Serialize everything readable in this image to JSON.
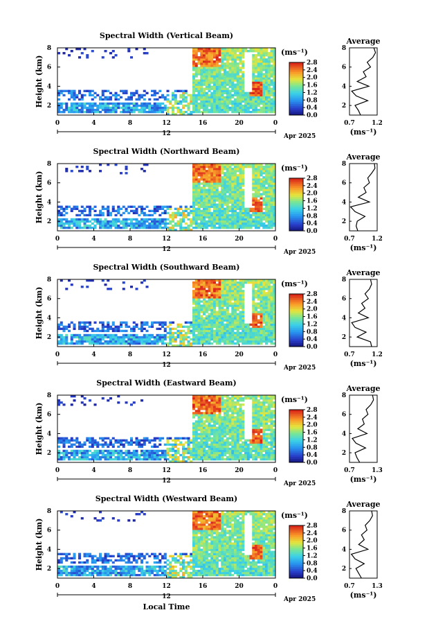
{
  "figure": {
    "date_label": "Apr 2025",
    "x_label": "Local Time",
    "y_label": "Height (km)",
    "colorbar_unit": "(ms⁻¹)",
    "avg_unit": "(ms⁻¹)",
    "avg_title": "Average",
    "day_label": "12"
  },
  "chart_data": [
    {
      "type": "heatmap",
      "title": "Spectral Width (Vertical Beam)",
      "xlabel": "",
      "ylabel": "Height (km)",
      "x_ticks": [
        "0",
        "4",
        "8",
        "12",
        "16",
        "20",
        "0"
      ],
      "y_ticks": [
        "2",
        "4",
        "6",
        "8"
      ],
      "xlim": [
        0,
        24
      ],
      "ylim": [
        1,
        8
      ],
      "colorbar": {
        "unit": "(ms⁻¹)",
        "ticks": [
          "0.0",
          "0.4",
          "0.8",
          "1.2",
          "1.6",
          "2.0",
          "2.4",
          "2.8"
        ],
        "range": [
          0,
          2.8
        ]
      },
      "average_profile": {
        "title": "Average",
        "xlabel": "(ms⁻¹)",
        "xlim": [
          0.7,
          1.2
        ],
        "x_ticks": [
          "0.7",
          "1.2"
        ],
        "ylim": [
          1,
          8
        ],
        "y_ticks": [
          "2",
          "4",
          "6",
          "8"
        ],
        "height_km": [
          1.0,
          1.5,
          2.0,
          2.5,
          3.0,
          3.5,
          4.0,
          4.5,
          5.0,
          5.5,
          6.0,
          6.5,
          7.0,
          7.5,
          8.0
        ],
        "value_ms": [
          0.9,
          0.86,
          0.8,
          1.03,
          0.82,
          0.74,
          1.05,
          0.84,
          1.0,
          0.95,
          1.08,
          1.02,
          1.12,
          1.17,
          1.14
        ]
      }
    },
    {
      "type": "heatmap",
      "title": "Spectral Width (Northward Beam)",
      "xlabel": "",
      "ylabel": "Height (km)",
      "x_ticks": [
        "0",
        "4",
        "8",
        "12",
        "16",
        "20",
        "0"
      ],
      "y_ticks": [
        "2",
        "4",
        "6",
        "8"
      ],
      "xlim": [
        0,
        24
      ],
      "ylim": [
        1,
        8
      ],
      "colorbar": {
        "unit": "(ms⁻¹)",
        "ticks": [
          "0.0",
          "0.4",
          "0.8",
          "1.2",
          "1.6",
          "2.0",
          "2.4",
          "2.8"
        ],
        "range": [
          0,
          2.8
        ]
      },
      "average_profile": {
        "title": "Average",
        "xlabel": "(ms⁻¹)",
        "xlim": [
          0.7,
          1.2
        ],
        "x_ticks": [
          "0.7",
          "1.2"
        ],
        "ylim": [
          1,
          8
        ],
        "y_ticks": [
          "2",
          "4",
          "6",
          "8"
        ],
        "height_km": [
          1.0,
          1.5,
          2.0,
          2.5,
          3.0,
          3.5,
          4.0,
          4.5,
          5.0,
          5.5,
          6.0,
          6.5,
          7.0,
          7.5,
          8.0
        ],
        "value_ms": [
          0.85,
          0.82,
          0.84,
          0.98,
          0.8,
          0.72,
          1.06,
          0.86,
          1.0,
          0.96,
          1.06,
          1.03,
          1.1,
          1.16,
          1.15
        ]
      }
    },
    {
      "type": "heatmap",
      "title": "Spectral Width (Southward Beam)",
      "xlabel": "",
      "ylabel": "Height (km)",
      "x_ticks": [
        "0",
        "4",
        "8",
        "12",
        "16",
        "20",
        "0"
      ],
      "y_ticks": [
        "2",
        "4",
        "6",
        "8"
      ],
      "xlim": [
        0,
        24
      ],
      "ylim": [
        1,
        8
      ],
      "colorbar": {
        "unit": "(ms⁻¹)",
        "ticks": [
          "0.0",
          "0.4",
          "0.8",
          "1.2",
          "1.6",
          "2.0",
          "2.4",
          "2.8"
        ],
        "range": [
          0,
          2.8
        ]
      },
      "average_profile": {
        "title": "Average",
        "xlabel": "(ms⁻¹)",
        "xlim": [
          0.7,
          1.2
        ],
        "x_ticks": [
          "0.7",
          "1.2"
        ],
        "ylim": [
          1,
          8
        ],
        "y_ticks": [
          "2",
          "4",
          "6",
          "8"
        ],
        "height_km": [
          1.0,
          1.5,
          2.0,
          2.5,
          3.0,
          3.5,
          4.0,
          4.5,
          5.0,
          5.5,
          6.0,
          6.5,
          7.0,
          7.5,
          8.0
        ],
        "value_ms": [
          1.1,
          1.08,
          0.84,
          1.0,
          0.8,
          0.74,
          1.04,
          0.86,
          0.98,
          0.92,
          1.04,
          0.98,
          1.06,
          1.1,
          1.08
        ]
      }
    },
    {
      "type": "heatmap",
      "title": "Spectral Width (Eastward Beam)",
      "xlabel": "",
      "ylabel": "Height (km)",
      "x_ticks": [
        "0",
        "4",
        "8",
        "12",
        "16",
        "20",
        "0"
      ],
      "y_ticks": [
        "2",
        "4",
        "6",
        "8"
      ],
      "xlim": [
        0,
        24
      ],
      "ylim": [
        1,
        8
      ],
      "colorbar": {
        "unit": "(ms⁻¹)",
        "ticks": [
          "0.0",
          "0.4",
          "0.8",
          "1.2",
          "1.6",
          "2.0",
          "2.4",
          "2.8"
        ],
        "range": [
          0,
          2.8
        ]
      },
      "average_profile": {
        "title": "Average",
        "xlabel": "(ms⁻¹)",
        "xlim": [
          0.7,
          1.3
        ],
        "x_ticks": [
          "0.7",
          "1.3"
        ],
        "ylim": [
          1,
          8
        ],
        "y_ticks": [
          "2",
          "4",
          "6",
          "8"
        ],
        "height_km": [
          1.0,
          1.5,
          2.0,
          2.5,
          3.0,
          3.5,
          4.0,
          4.5,
          5.0,
          5.5,
          6.0,
          6.5,
          7.0,
          7.5,
          8.0
        ],
        "value_ms": [
          0.92,
          0.86,
          0.82,
          1.05,
          0.84,
          0.76,
          1.08,
          0.88,
          1.02,
          0.98,
          1.1,
          1.06,
          1.16,
          1.22,
          1.2
        ]
      }
    },
    {
      "type": "heatmap",
      "title": "Spectral Width (Westward Beam)",
      "xlabel": "Local Time",
      "ylabel": "Height (km)",
      "x_ticks": [
        "0",
        "4",
        "8",
        "12",
        "16",
        "20",
        "0"
      ],
      "y_ticks": [
        "2",
        "4",
        "6",
        "8"
      ],
      "xlim": [
        0,
        24
      ],
      "ylim": [
        1,
        8
      ],
      "colorbar": {
        "unit": "(ms⁻¹)",
        "ticks": [
          "0.0",
          "0.4",
          "0.8",
          "1.2",
          "1.6",
          "2.0",
          "2.4",
          "2.8"
        ],
        "range": [
          0,
          2.8
        ]
      },
      "average_profile": {
        "title": "Average",
        "xlabel": "(ms⁻¹)",
        "xlim": [
          0.7,
          1.3
        ],
        "x_ticks": [
          "0.7",
          "1.3"
        ],
        "ylim": [
          1,
          8
        ],
        "y_ticks": [
          "2",
          "4",
          "6",
          "8"
        ],
        "height_km": [
          1.0,
          1.5,
          2.0,
          2.5,
          3.0,
          3.5,
          4.0,
          4.5,
          5.0,
          5.5,
          6.0,
          6.5,
          7.0,
          7.5,
          8.0
        ],
        "value_ms": [
          0.96,
          0.9,
          0.84,
          1.02,
          0.82,
          0.74,
          1.1,
          0.9,
          1.02,
          0.96,
          1.08,
          1.04,
          1.14,
          1.2,
          1.18
        ]
      }
    }
  ]
}
